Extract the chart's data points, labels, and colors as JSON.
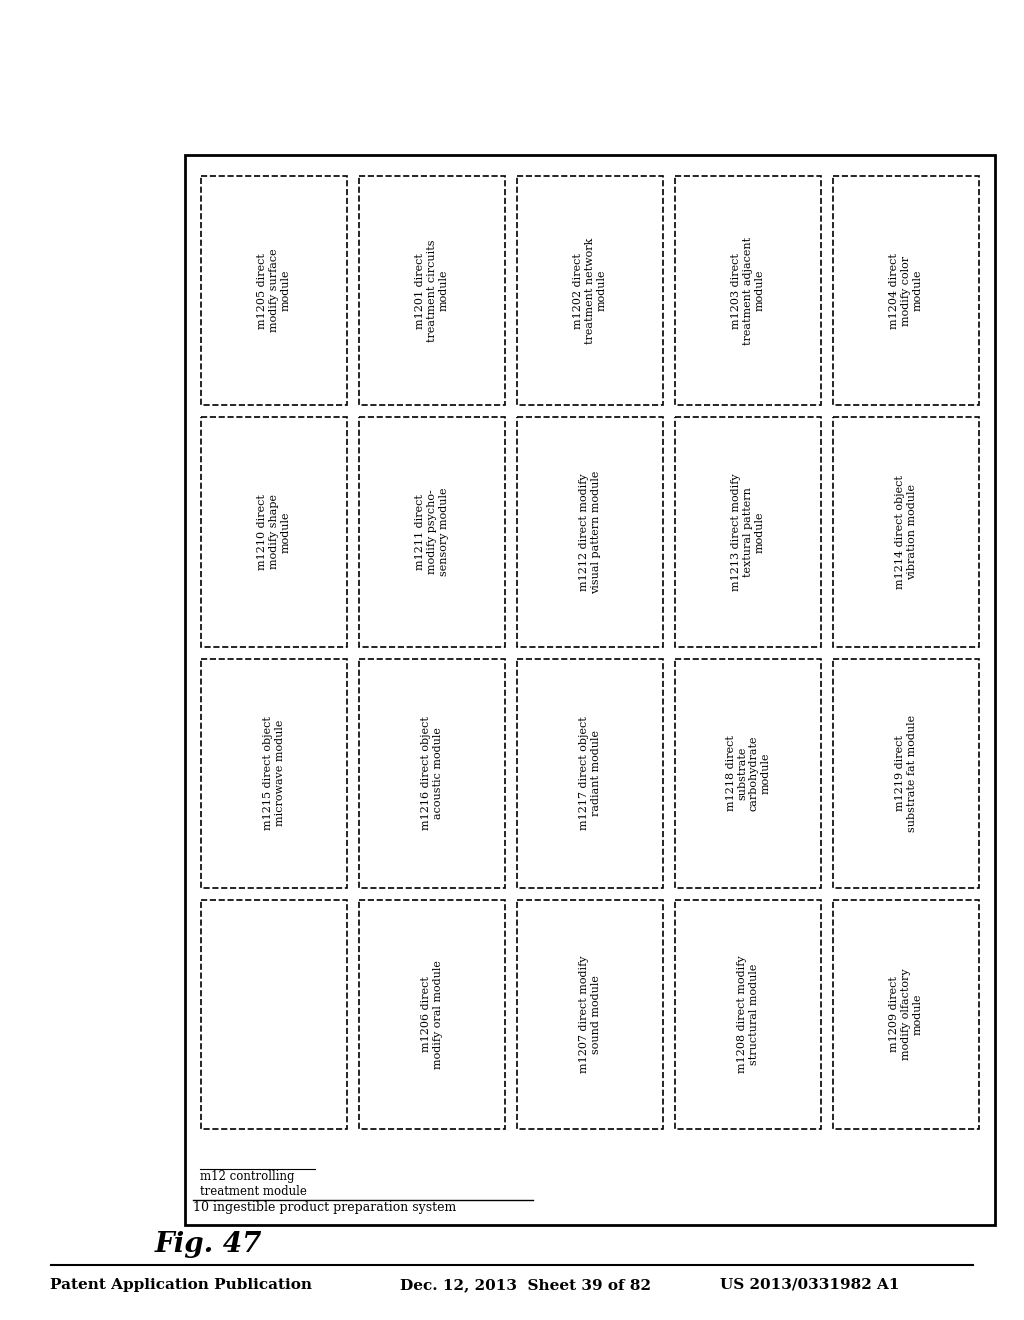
{
  "title": "Fig. 47",
  "header_left": "Patent Application Publication",
  "header_center": "Dec. 12, 2013  Sheet 39 of 82",
  "header_right": "US 2013/0331982 A1",
  "outer_label": "10 ingestible product preparation system",
  "top_left_label": "m12 controlling\ntreatment module",
  "grid": [
    [
      [
        "m1205 direct\nmodify surface\nmodule",
        "m1201 direct\ntreatment circuits\nmodule",
        "m1202 direct\ntreatment network\nmodule",
        "m1203 direct\ntreatment adjacent\nmodule",
        "m1204 direct\nmodify color\nmodule"
      ],
      [
        "m1210 direct\nmodify shape\nmodule",
        "m1211 direct\nmodify psycho-\nsensory module",
        "m1212 direct modify\nvisual pattern module",
        "m1213 direct modify\ntextural pattern\nmodule",
        "m1214 direct object\nvibration module"
      ],
      [
        "m1215 direct object\nmicrowave module",
        "m1216 direct object\nacoustic module",
        "m1217 direct object\nradiant module",
        "m1218 direct\nsubstrate\ncarbohydrate\nmodule",
        "m1219 direct\nsubstrate fat module"
      ]
    ]
  ],
  "row2": [
    "m1206 direct\nmodify oral module",
    "m1207 direct modify\nsound module",
    "m1208 direct modify\nstructural module",
    "m1209 direct\nmodify olfactory\nmodule"
  ],
  "background_color": "#ffffff",
  "box_edge_color": "#000000",
  "text_color": "#000000"
}
